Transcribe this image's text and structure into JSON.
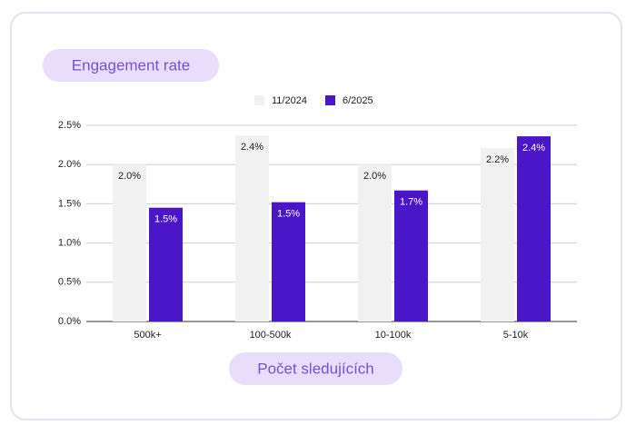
{
  "chart_data": {
    "type": "bar",
    "title": "Engagement rate",
    "x_label": "Počet sledujících",
    "categories": [
      "500k+",
      "100-500k",
      "10-100k",
      "5-10k"
    ],
    "series": [
      {
        "name": "11/2024",
        "color": "#f1f1f1",
        "label_color": "#222222",
        "values": [
          2.0,
          2.37,
          2.0,
          2.21
        ],
        "value_labels": [
          "2.0%",
          "2.4%",
          "2.0%",
          "2.2%"
        ]
      },
      {
        "name": "6/2025",
        "color": "#4a16c8",
        "label_color": "#ffffff",
        "values": [
          1.45,
          1.52,
          1.67,
          2.36
        ],
        "value_labels": [
          "1.5%",
          "1.5%",
          "1.7%",
          "2.4%"
        ]
      }
    ],
    "ylim": [
      0,
      2.5
    ],
    "yticks": [
      {
        "value": 0,
        "label": "0.0%"
      },
      {
        "value": 0.5,
        "label": "0.5%"
      },
      {
        "value": 1,
        "label": "1.0%"
      },
      {
        "value": 1.5,
        "label": "1.5%"
      },
      {
        "value": 2,
        "label": "2.0%"
      },
      {
        "value": 2.5,
        "label": "2.5%"
      }
    ],
    "grid": true
  }
}
